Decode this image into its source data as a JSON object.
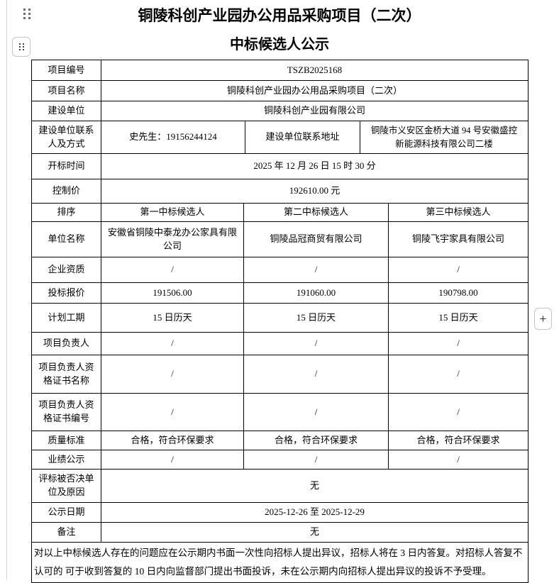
{
  "header": {
    "title_line1": "铜陵科创产业园办公用品采购项目（二次）",
    "title_line2": "中标候选人公示"
  },
  "icons": {
    "top_drag_handle": "six-dot-drag-handle",
    "block_drag_handle": "six-dot-drag-handle-button",
    "add_button_glyph": "+"
  },
  "colors": {
    "table_border": "#000000",
    "icon_gray": "#6d6d6d",
    "button_border": "#c2c6ca",
    "page_edge_line": "#d9d9d9"
  },
  "table": {
    "project_no": {
      "label": "项目编号",
      "value": "TSZB2025168"
    },
    "project_name": {
      "label": "项目名称",
      "value": "铜陵科创产业园办公用品采购项目（二次）"
    },
    "owner": {
      "label": "建设单位",
      "value": "铜陵科创产业园有限公司"
    },
    "contact": {
      "label": "建设单位联系\n人及方式",
      "person": "史先生：19156244124",
      "address_label": "建设单位联系地址",
      "address": "铜陵市义安区金桥大道 94 号安徽盛控\n新能源科技有限公司二楼"
    },
    "bid_open_time": {
      "label": "开标时间",
      "value": "2025 年 12 月 26 日 15 时 30 分"
    },
    "control_price": {
      "label": "控制价",
      "value": "192610.00 元"
    },
    "ranking": {
      "label": "排序",
      "first": "第一中标候选人",
      "second": "第二中标候选人",
      "third": "第三中标候选人"
    },
    "company": {
      "label": "单位名称",
      "first": "安徽省铜陵中泰龙办公家具有限\n公司",
      "second": "铜陵品冠商贸有限公司",
      "third": "铜陵飞宇家具有限公司"
    },
    "qualification": {
      "label": "企业资质",
      "first": "/",
      "second": "/",
      "third": "/"
    },
    "bid_price": {
      "label": "投标报价",
      "first": "191506.00",
      "second": "191060.00",
      "third": "190798.00"
    },
    "duration": {
      "label": "计划工期",
      "first": "15 日历天",
      "second": "15 日历天",
      "third": "15 日历天"
    },
    "manager": {
      "label": "项目负责人",
      "first": "/",
      "second": "/",
      "third": "/"
    },
    "cert_name": {
      "label": "项目负责人资\n格证书名称",
      "first": "/",
      "second": "/",
      "third": "/"
    },
    "cert_no": {
      "label": "项目负责人资\n格证书编号",
      "first": "/",
      "second": "/",
      "third": "/"
    },
    "quality": {
      "label": "质量标准",
      "first": "合格，符合环保要求",
      "second": "合格，符合环保要求",
      "third": "合格，符合环保要求"
    },
    "performance": {
      "label": "业绩公示",
      "first": "/",
      "second": "/",
      "third": "/"
    },
    "rejected": {
      "label": "评标被否决单\n位及原因",
      "value": "无"
    },
    "publicity_date": {
      "label": "公示日期",
      "value": "2025-12-26 至 2025-12-29"
    },
    "remark": {
      "label": "备注",
      "value": "无"
    },
    "note": "对以上中标候选人存在的问题应在公示期内书面一次性向招标人提出异议，招标人将在 3 日内答复。对招标人答复不认可的 可于收到答复的 10 日内向监督部门提出书面投诉，未在公示期内向招标人提出异议的投诉不予受理。"
  }
}
